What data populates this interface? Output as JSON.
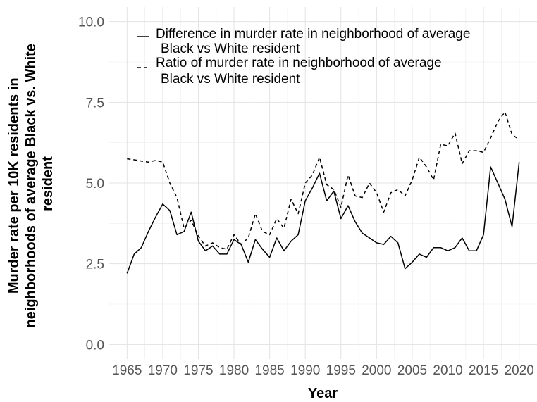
{
  "chart_data": {
    "type": "line",
    "xlabel": "Year",
    "ylabel_lines": [
      "Murder rate per 10K residents in",
      "neighborhoods of average Black vs. White",
      "resident"
    ],
    "xlim": [
      1962.5,
      2022.5
    ],
    "ylim": [
      -0.45,
      10.45
    ],
    "x_ticks": [
      1965,
      1970,
      1975,
      1980,
      1985,
      1990,
      1995,
      2000,
      2005,
      2010,
      2015,
      2020
    ],
    "x_tick_labels": [
      "1965",
      "1970",
      "1975",
      "1980",
      "1985",
      "1990",
      "1995",
      "2000",
      "2005",
      "2010",
      "2015",
      "2020"
    ],
    "y_ticks": [
      0,
      2.5,
      5,
      7.5,
      10
    ],
    "y_tick_labels": [
      "0.0",
      "2.5",
      "5.0",
      "7.5",
      "10.0"
    ],
    "grid": true,
    "legend_position": "top-left",
    "x": [
      1965,
      1966,
      1967,
      1968,
      1969,
      1970,
      1971,
      1972,
      1973,
      1974,
      1975,
      1976,
      1977,
      1978,
      1979,
      1980,
      1981,
      1982,
      1983,
      1984,
      1985,
      1986,
      1987,
      1988,
      1989,
      1990,
      1991,
      1992,
      1993,
      1994,
      1995,
      1996,
      1997,
      1998,
      1999,
      2000,
      2001,
      2002,
      2003,
      2004,
      2005,
      2006,
      2007,
      2008,
      2009,
      2010,
      2011,
      2012,
      2013,
      2014,
      2015,
      2016,
      2017,
      2018,
      2019,
      2020
    ],
    "series": [
      {
        "name_lines": [
          "Difference in murder rate in neighborhood of average",
          "Black vs White resident"
        ],
        "style": "solid",
        "values": [
          2.2,
          2.8,
          3.0,
          3.5,
          3.95,
          4.35,
          4.15,
          3.4,
          3.5,
          4.1,
          3.2,
          2.9,
          3.05,
          2.8,
          2.8,
          3.25,
          3.1,
          2.55,
          3.25,
          2.95,
          2.7,
          3.3,
          2.9,
          3.2,
          3.4,
          4.45,
          4.85,
          5.3,
          4.45,
          4.75,
          3.9,
          4.3,
          3.8,
          3.45,
          3.3,
          3.15,
          3.1,
          3.35,
          3.15,
          2.35,
          2.55,
          2.8,
          2.7,
          3.0,
          3.0,
          2.9,
          3.0,
          3.3,
          2.9,
          2.9,
          3.4,
          5.5,
          5.0,
          4.5,
          3.65,
          5.65
        ]
      },
      {
        "name_lines": [
          "Ratio of murder rate in neighborhood of average",
          "Black vs White resident"
        ],
        "style": "dashed",
        "values": [
          5.75,
          5.72,
          5.68,
          5.65,
          5.7,
          5.65,
          5.0,
          4.55,
          3.6,
          3.85,
          3.35,
          3.05,
          3.15,
          3.0,
          2.95,
          3.4,
          3.1,
          3.3,
          4.05,
          3.5,
          3.4,
          3.9,
          3.6,
          4.5,
          4.05,
          5.0,
          5.25,
          5.8,
          4.95,
          4.8,
          4.25,
          5.25,
          4.6,
          4.55,
          5.0,
          4.7,
          4.1,
          4.7,
          4.8,
          4.6,
          5.1,
          5.8,
          5.5,
          5.1,
          6.2,
          6.15,
          6.55,
          5.6,
          6.0,
          6.0,
          5.95,
          6.4,
          6.9,
          7.2,
          6.5,
          6.35
        ]
      }
    ]
  }
}
